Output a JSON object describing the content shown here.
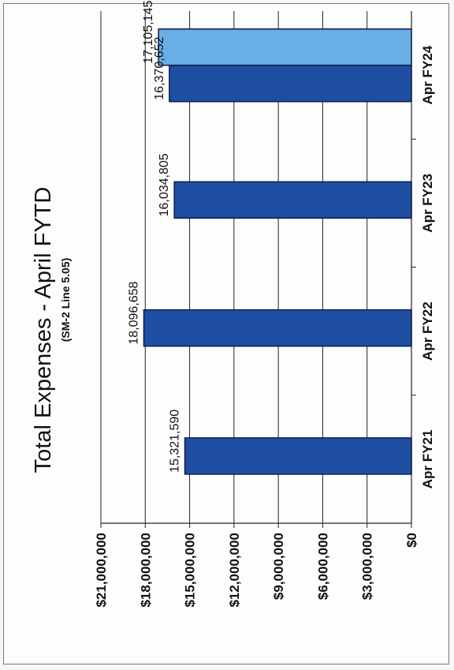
{
  "chart_data": {
    "type": "bar",
    "title": "Total Expenses - April FYTD",
    "subtitle": "(SM-2 Line 5.05)",
    "xlabel": "",
    "ylabel": "",
    "categories": [
      "Apr FY21",
      "Apr FY22",
      "Apr FY23",
      "Apr FY24"
    ],
    "series": [
      {
        "values": [
          15321590,
          18096658,
          16034805,
          16370652
        ]
      },
      {
        "values": [
          null,
          null,
          null,
          17105145
        ]
      }
    ],
    "data_labels": [
      "15,321,590",
      "18,096,658",
      "16,034,805",
      "16,370,652",
      "17,105,145"
    ],
    "ylim": [
      0,
      21000000
    ],
    "yticks": [
      0,
      3000000,
      6000000,
      9000000,
      12000000,
      15000000,
      18000000,
      21000000
    ],
    "ytick_labels": [
      "$0",
      "$3,000,000",
      "$6,000,000",
      "$9,000,000",
      "$12,000,000",
      "$15,000,000",
      "$18,000,000",
      "$21,000,000"
    ],
    "grid": true,
    "orientation": "rotated-90-ccw",
    "colors": {
      "series1": "#1f4fa3",
      "series2": "#6aaee6",
      "border": "#0d1f4a"
    }
  }
}
